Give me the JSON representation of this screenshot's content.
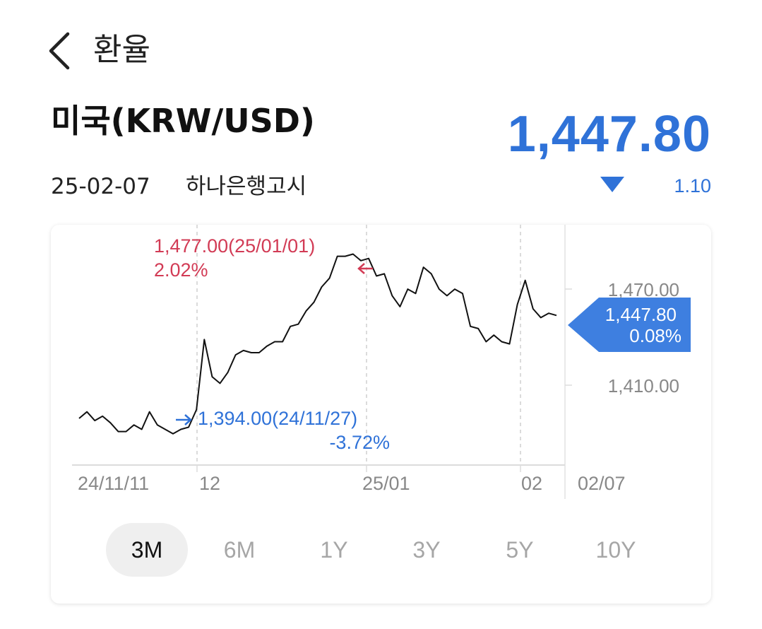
{
  "header": {
    "title": "환율",
    "back_icon": "chevron-left-icon"
  },
  "currency": {
    "pair": "미국(KRW/USD)",
    "rate": "1,447.80",
    "date": "25-02-07",
    "source": "하나은행고시",
    "change": "1.10",
    "direction": "down",
    "color": "#2f72d8"
  },
  "chart_data": {
    "type": "line",
    "x_tick_labels": [
      "24/11/11",
      "12",
      "25/01",
      "02",
      "02/07"
    ],
    "y_tick_labels": [
      "1,470.00",
      "1,410.00"
    ],
    "y_ticks": [
      1470,
      1410
    ],
    "ylim": [
      1380.7,
      1490.4
    ],
    "series": [
      {
        "values": [
          1402,
          1405,
          1401,
          1403,
          1400,
          1396,
          1396,
          1399,
          1397,
          1405,
          1399,
          1397,
          1395,
          1397,
          1398,
          1406,
          1438,
          1421,
          1418,
          1423,
          1431,
          1433,
          1432,
          1432,
          1435,
          1437,
          1437,
          1444,
          1445,
          1451,
          1455,
          1462,
          1466,
          1476,
          1476,
          1477,
          1474,
          1475,
          1467,
          1468,
          1458,
          1453,
          1461,
          1459,
          1471,
          1468,
          1461,
          1458,
          1461,
          1459,
          1444,
          1443,
          1437,
          1440,
          1437,
          1436,
          1454,
          1465,
          1452,
          1448,
          1450,
          1449
        ],
        "color": "#111111"
      }
    ],
    "markers": [
      {
        "label": "1,477.00(25/01/01)",
        "pct": "2.02%",
        "value": 1477,
        "color": "#d23b55"
      },
      {
        "label": "1,394.00(24/11/27)",
        "pct": "-3.72%",
        "value": 1394,
        "color": "#2f72d8"
      }
    ],
    "current": {
      "value": 1447.8,
      "label": "1,447.80",
      "pct": "0.08%",
      "color": "#2f72d8"
    }
  },
  "tabs": [
    {
      "label": "3M",
      "active": true
    },
    {
      "label": "6M",
      "active": false
    },
    {
      "label": "1Y",
      "active": false
    },
    {
      "label": "3Y",
      "active": false
    },
    {
      "label": "5Y",
      "active": false
    },
    {
      "label": "10Y",
      "active": false
    }
  ]
}
